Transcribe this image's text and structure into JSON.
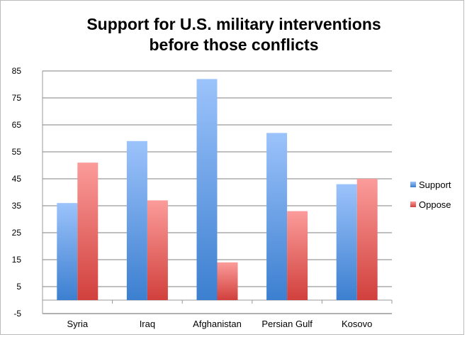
{
  "chart_data": {
    "type": "bar",
    "title": "Support for U.S. military interventions before those conflicts",
    "title_lines": [
      "Support for U.S. military interventions",
      "before those conflicts"
    ],
    "categories": [
      "Syria",
      "Iraq",
      "Afghanistan",
      "Persian Gulf",
      "Kosovo"
    ],
    "series": [
      {
        "name": "Support",
        "values": [
          36,
          59,
          82,
          62,
          43
        ],
        "color": "#4a86d6"
      },
      {
        "name": "Oppose",
        "values": [
          51,
          37,
          14,
          33,
          45
        ],
        "color": "#d9504c"
      }
    ],
    "yticks": [
      -5,
      5,
      15,
      25,
      35,
      45,
      55,
      65,
      75,
      85
    ],
    "ylim": [
      -5,
      85
    ],
    "grid": true,
    "legend": "right"
  }
}
